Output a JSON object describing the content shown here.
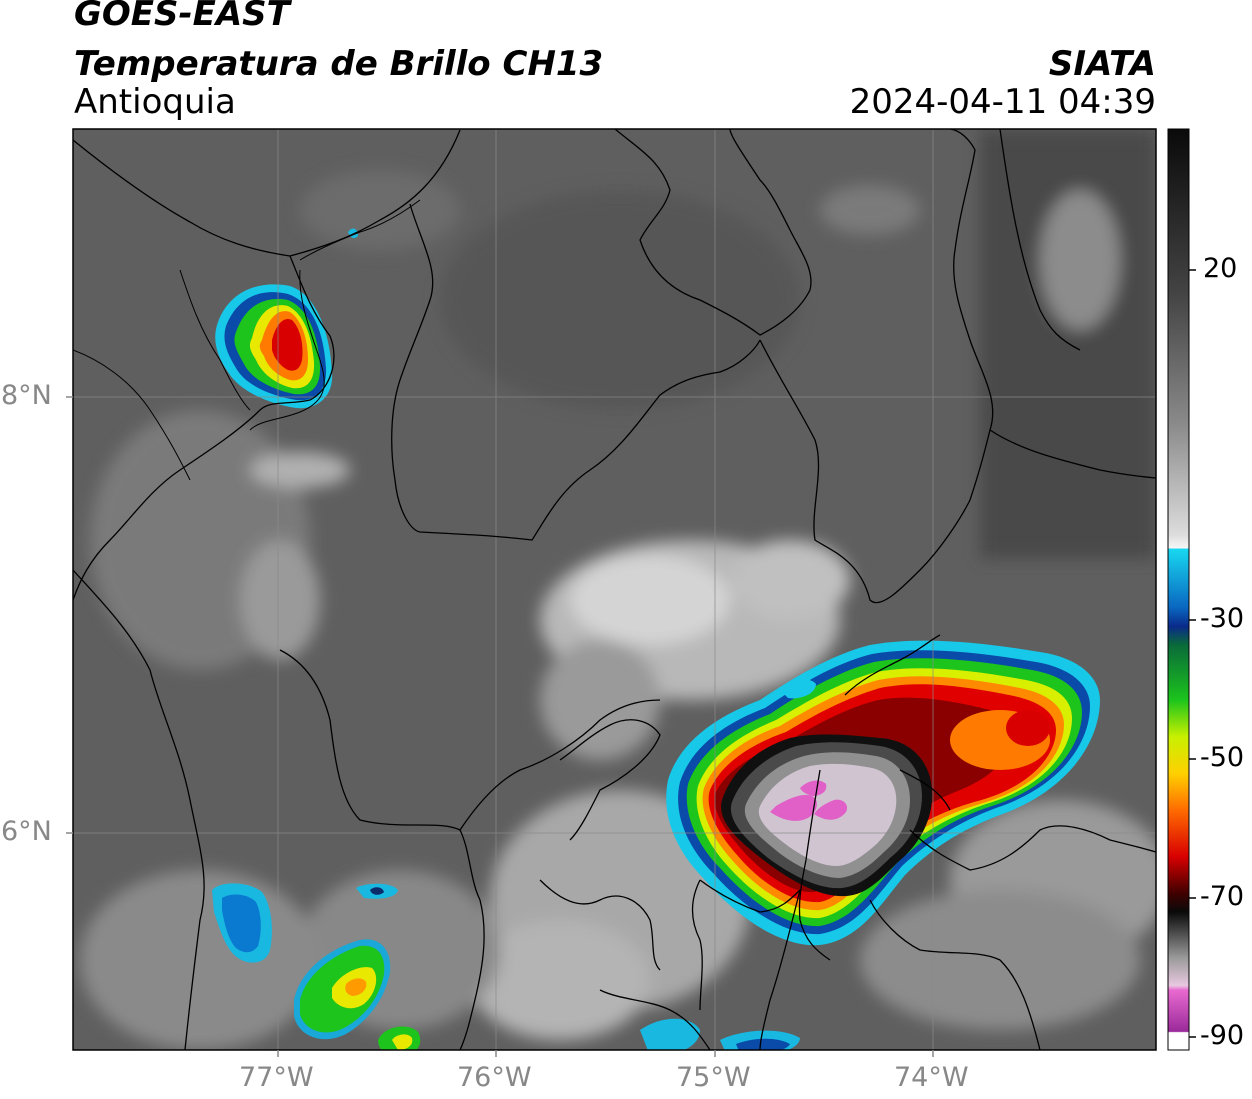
{
  "header": {
    "satellite": "GOES-EAST",
    "product": "Temperatura de Brillo CH13",
    "region": "Antioquia",
    "source": "SIATA",
    "datetime": "2024-04-11 04:39"
  },
  "axes": {
    "lat_labels": [
      "8°N",
      "6°N"
    ],
    "lon_labels": [
      "77°W",
      "76°W",
      "75°W",
      "74°W"
    ]
  },
  "colorbar": {
    "ticks": [
      "20",
      "-30",
      "-50",
      "-70",
      "-90"
    ]
  },
  "colors": {
    "background_gray": "#5c5c5c",
    "border": "#000000",
    "grid": "#8a8a8a"
  }
}
